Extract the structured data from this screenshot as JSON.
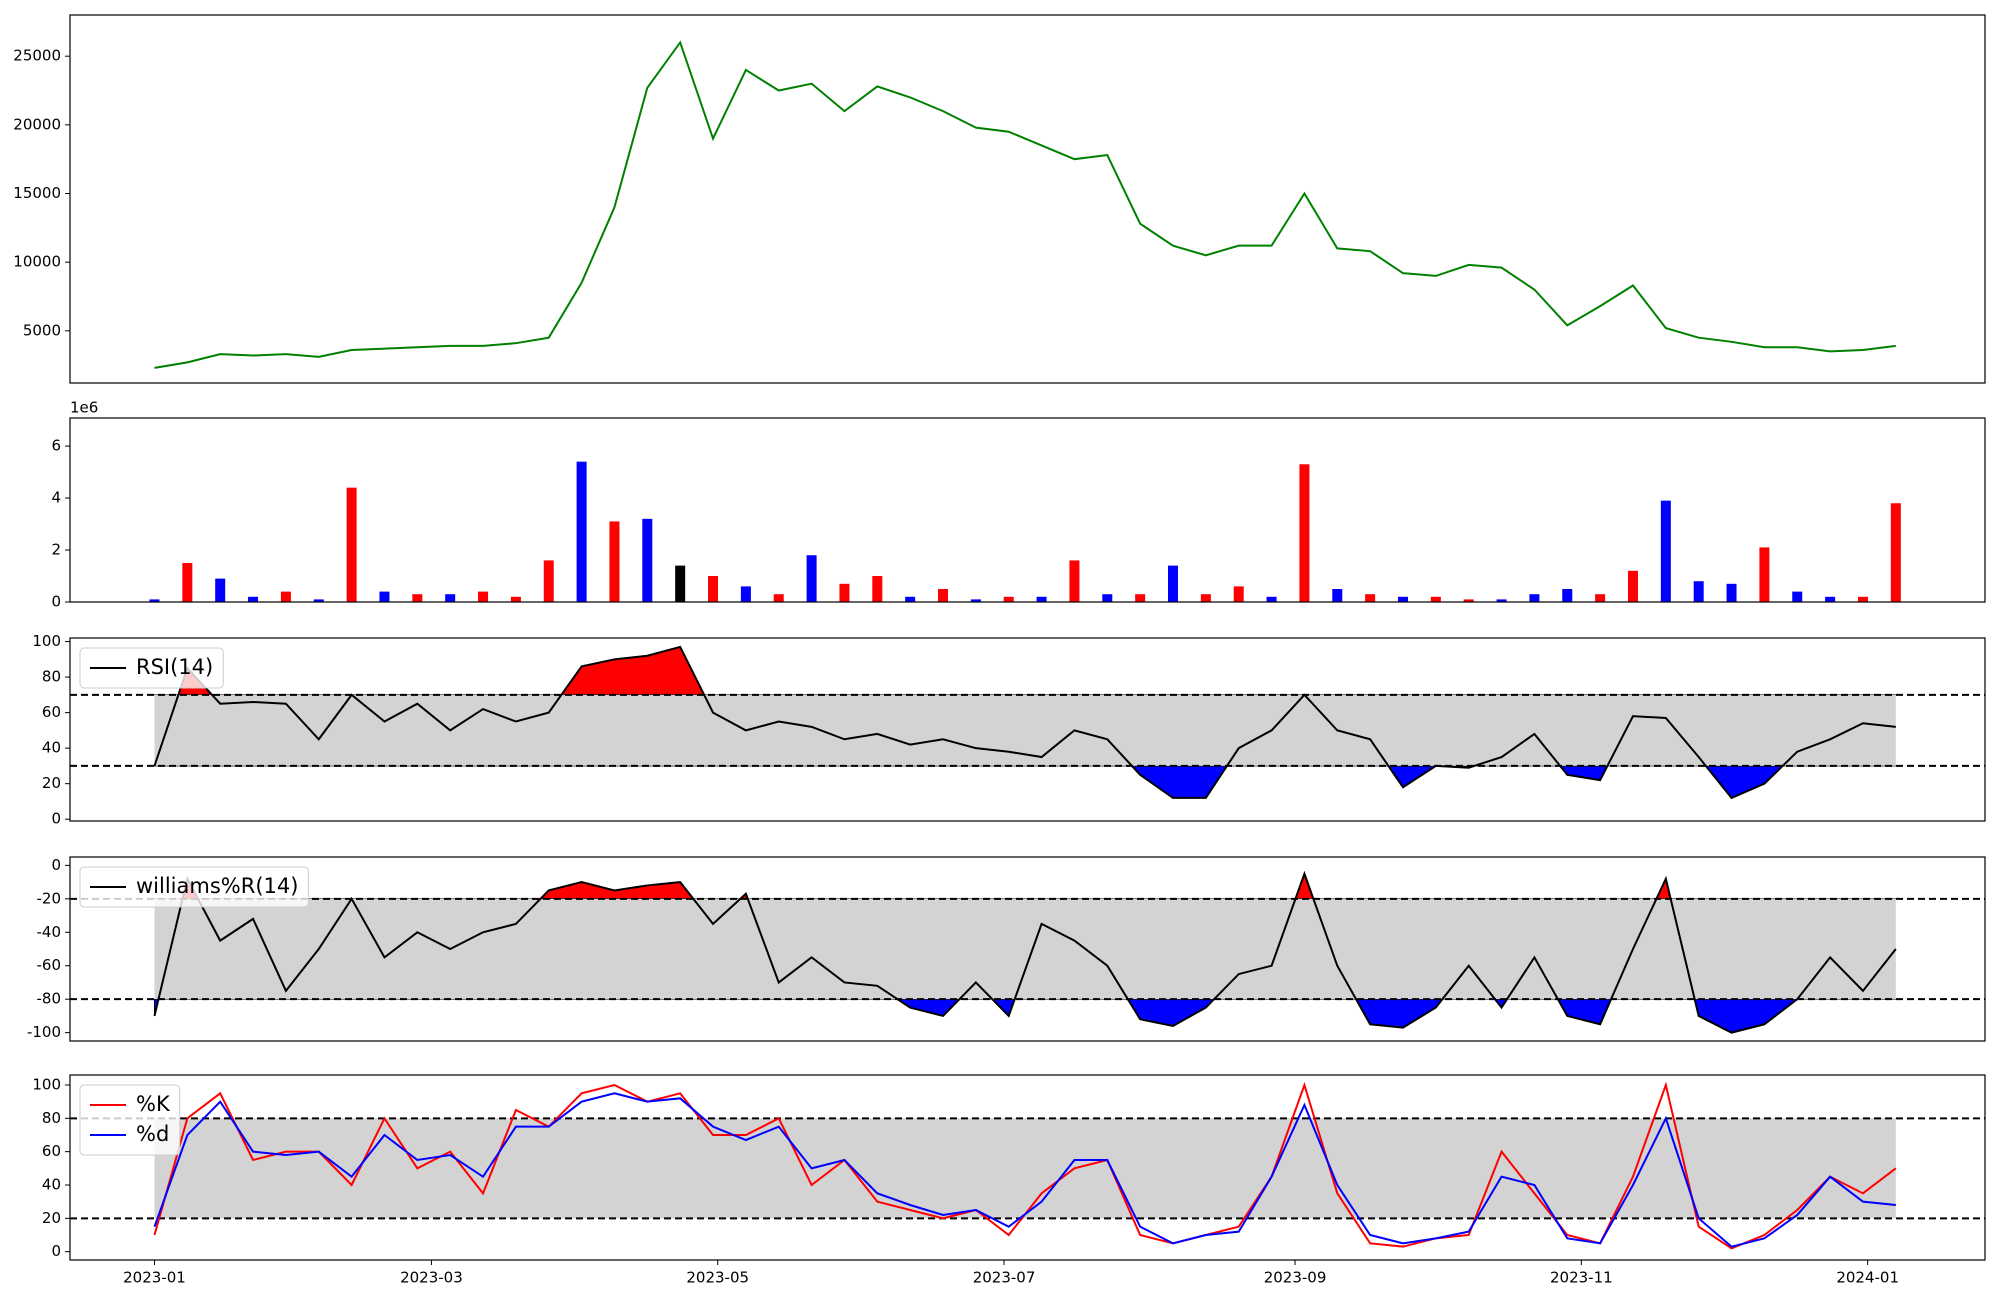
{
  "chart_data": [
    {
      "type": "line",
      "color": "green",
      "values": [
        2300,
        2700,
        3300,
        3200,
        3300,
        3100,
        3600,
        3700,
        3800,
        3900,
        3900,
        4100,
        4500,
        8500,
        14000,
        22700,
        26000,
        19000,
        24000,
        22500,
        23000,
        21000,
        22800,
        22000,
        21000,
        19800,
        19500,
        18500,
        17500,
        17800,
        12800,
        11200,
        10500,
        11200,
        11200,
        15000,
        11000,
        10800,
        9200,
        9000,
        9800,
        9600,
        8000,
        5400,
        6800,
        8300,
        5200,
        4500,
        4200,
        3800,
        3800,
        3500,
        3600,
        3900
      ],
      "ylim": [
        1200,
        28000
      ],
      "yticks": [
        5000,
        10000,
        15000,
        20000,
        25000
      ]
    },
    {
      "type": "bar",
      "offset_label": "1e6",
      "values": [
        100000,
        1500000,
        900000,
        200000,
        400000,
        100000,
        4400000,
        400000,
        300000,
        300000,
        400000,
        200000,
        1600000,
        5400000,
        3100000,
        3200000,
        1400000,
        1000000,
        600000,
        300000,
        1800000,
        700000,
        1000000,
        200000,
        500000,
        100000,
        200000,
        200000,
        1600000,
        300000,
        300000,
        1400000,
        300000,
        600000,
        200000,
        5300000,
        500000,
        300000,
        200000,
        200000,
        100000,
        100000,
        300000,
        500000,
        300000,
        1200000,
        3900000,
        800000,
        700000,
        2100000,
        400000,
        200000,
        200000,
        3800000
      ],
      "colors": [
        "blue",
        "red",
        "blue",
        "blue",
        "red",
        "blue",
        "red",
        "blue",
        "red",
        "blue",
        "red",
        "red",
        "red",
        "blue",
        "red",
        "blue",
        "black",
        "red",
        "blue",
        "red",
        "blue",
        "red",
        "red",
        "blue",
        "red",
        "blue",
        "red",
        "blue",
        "red",
        "blue",
        "red",
        "blue",
        "red",
        "red",
        "blue",
        "red",
        "blue",
        "red",
        "blue",
        "red",
        "red",
        "blue",
        "blue",
        "blue",
        "red",
        "red",
        "blue",
        "blue",
        "blue",
        "red",
        "blue",
        "blue",
        "red",
        "red"
      ],
      "ylim": [
        0,
        7080000
      ],
      "yticks": [
        0,
        {
          "value": 2000000,
          "label": "2"
        },
        {
          "value": 4000000,
          "label": "4"
        },
        {
          "value": 6000000,
          "label": "6"
        }
      ]
    },
    {
      "type": "line",
      "legend": "upper left",
      "thresholds": [
        30,
        70
      ],
      "band_color": "#d3d3d3",
      "above_color": "red",
      "below_color": "blue",
      "series": [
        {
          "name": "RSI(14)",
          "color": "black",
          "values": [
            30,
            85,
            65,
            66,
            65,
            45,
            70,
            55,
            65,
            50,
            62,
            55,
            60,
            86,
            90,
            92,
            97,
            60,
            50,
            55,
            52,
            45,
            48,
            42,
            45,
            40,
            38,
            35,
            50,
            45,
            25,
            12,
            12,
            40,
            50,
            70,
            50,
            45,
            18,
            30,
            29,
            35,
            48,
            25,
            22,
            58,
            57,
            35,
            12,
            20,
            38,
            45,
            54,
            52
          ]
        }
      ],
      "ylim": [
        -1,
        102
      ],
      "yticks": [
        0,
        20,
        40,
        60,
        80,
        100
      ]
    },
    {
      "type": "line",
      "legend": "upper left",
      "thresholds": [
        -80,
        -20
      ],
      "band_color": "#d3d3d3",
      "above_color": "red",
      "below_color": "blue",
      "series": [
        {
          "name": "williams%R(14)",
          "color": "black",
          "values": [
            -90,
            -8,
            -45,
            -32,
            -75,
            -50,
            -20,
            -55,
            -40,
            -50,
            -40,
            -35,
            -15,
            -10,
            -15,
            -12,
            -10,
            -35,
            -17,
            -70,
            -55,
            -70,
            -72,
            -85,
            -90,
            -70,
            -90,
            -35,
            -45,
            -60,
            -92,
            -96,
            -85,
            -65,
            -60,
            -5,
            -60,
            -95,
            -97,
            -85,
            -60,
            -85,
            -55,
            -90,
            -95,
            -50,
            -8,
            -90,
            -100,
            -95,
            -80,
            -55,
            -75,
            -50
          ]
        }
      ],
      "ylim": [
        -105,
        5
      ],
      "yticks": [
        0,
        -20,
        -40,
        -60,
        -80,
        -100
      ]
    },
    {
      "type": "line",
      "legend": "upper left",
      "thresholds": [
        20,
        80
      ],
      "band_color": "#d3d3d3",
      "series": [
        {
          "name": "%K",
          "color": "red",
          "values": [
            10,
            80,
            95,
            55,
            60,
            60,
            40,
            80,
            50,
            60,
            35,
            85,
            75,
            95,
            100,
            90,
            95,
            70,
            70,
            80,
            40,
            55,
            30,
            25,
            20,
            25,
            10,
            35,
            50,
            55,
            10,
            5,
            10,
            15,
            45,
            100,
            35,
            5,
            3,
            8,
            10,
            60,
            35,
            10,
            5,
            45,
            100,
            15,
            2,
            10,
            25,
            45,
            35,
            50
          ]
        },
        {
          "name": "%d",
          "color": "blue",
          "values": [
            15,
            70,
            90,
            60,
            58,
            60,
            45,
            70,
            55,
            58,
            45,
            75,
            75,
            90,
            95,
            90,
            92,
            75,
            67,
            75,
            50,
            55,
            35,
            28,
            22,
            25,
            15,
            30,
            55,
            55,
            15,
            5,
            10,
            12,
            45,
            88,
            40,
            10,
            5,
            8,
            12,
            45,
            40,
            8,
            5,
            40,
            80,
            20,
            3,
            8,
            22,
            45,
            30,
            28
          ]
        }
      ],
      "ylim": [
        -5,
        106
      ],
      "yticks": [
        0,
        20,
        40,
        60,
        80,
        100
      ],
      "xticks": [
        "2023-01",
        "2023-03",
        "2023-05",
        "2023-07",
        "2023-09",
        "2023-11",
        "2024-01"
      ]
    }
  ]
}
